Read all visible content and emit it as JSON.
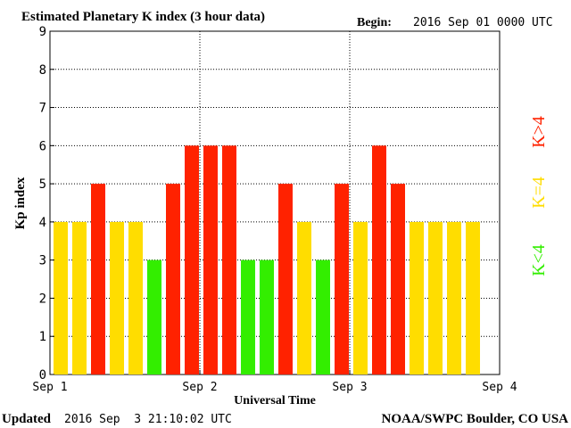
{
  "header": {
    "title": "Estimated Planetary K index (3 hour data)",
    "begin_label": "Begin:",
    "begin_value": "2016 Sep 01 0000 UTC"
  },
  "footer": {
    "updated_label": "Updated",
    "updated_value": "2016 Sep  3 21:10:02 UTC",
    "credit": "NOAA/SWPC Boulder, CO USA"
  },
  "legend": {
    "high": {
      "label": "K>4",
      "color": "#ff2200"
    },
    "equal": {
      "label": "K=4",
      "color": "#ffdd00"
    },
    "low": {
      "label": "K<4",
      "color": "#33ee00"
    }
  },
  "chart_data": {
    "type": "bar",
    "title": "Estimated Planetary K index (3 hour data)",
    "xlabel": "Universal Time",
    "ylabel": "Kp index",
    "ylim": [
      0,
      9
    ],
    "yticks": [
      "0",
      "1",
      "2",
      "3",
      "4",
      "5",
      "6",
      "7",
      "8",
      "9"
    ],
    "xticks": [
      "Sep 1",
      "Sep 2",
      "Sep 3",
      "Sep 4"
    ],
    "grid": true,
    "bins_per_day": 8,
    "values": [
      4,
      4,
      5,
      4,
      4,
      3,
      5,
      6,
      6,
      6,
      3,
      3,
      5,
      4,
      3,
      5,
      4,
      6,
      5,
      4,
      4,
      4,
      4
    ],
    "colors": {
      "above_4": "#ff2200",
      "equal_4": "#ffdd00",
      "below_4": "#33ee00"
    }
  }
}
